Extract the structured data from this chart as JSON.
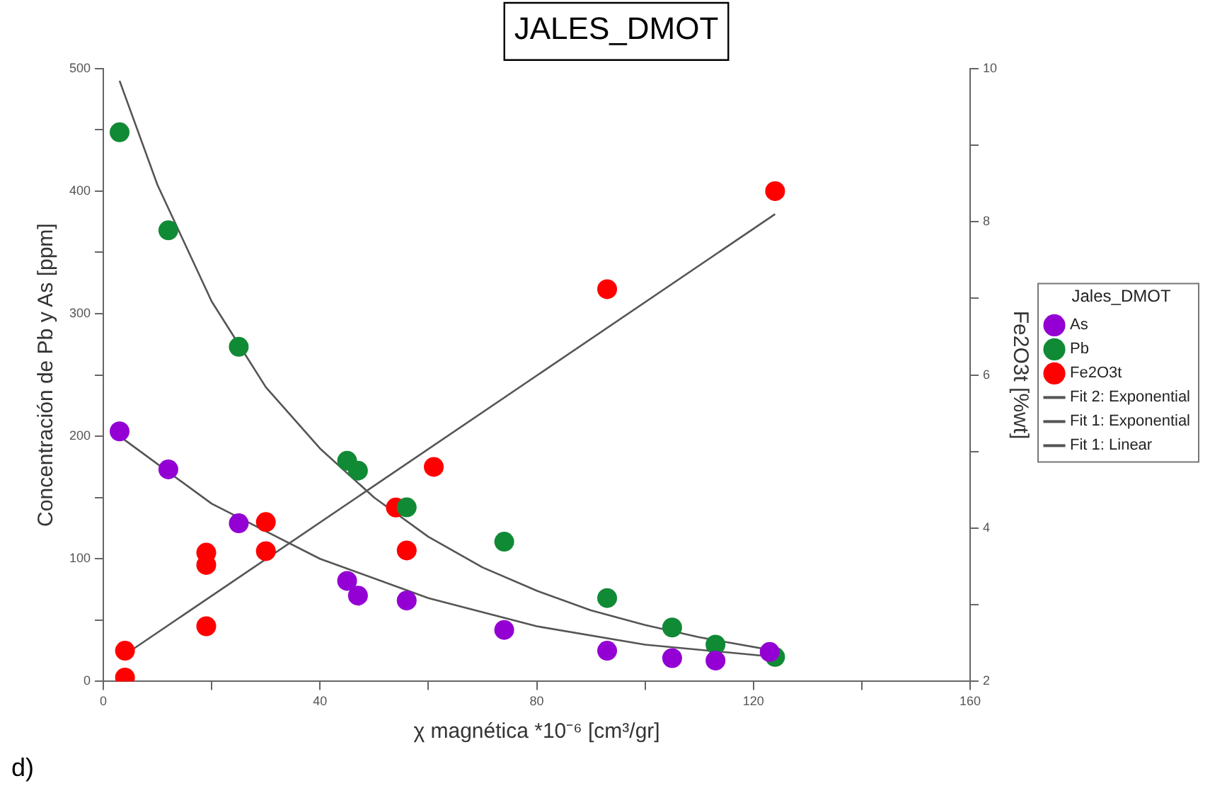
{
  "chart_data": {
    "type": "scatter",
    "title": "JALES_DMOT",
    "xlabel": "χ magnética *10⁻⁶ [cm³/gr]",
    "ylabel": "Concentración de Pb y As [ppm]",
    "y2label": "Fe2O3t [%wt]",
    "legend_title": "Jales_DMOT",
    "legend": "right",
    "grid": false,
    "marker": "circle",
    "xlim": [
      0,
      160
    ],
    "xticks": [
      0,
      {
        "value": 20,
        "label": null
      },
      40,
      {
        "value": 60,
        "label": null
      },
      80,
      {
        "value": 100,
        "label": null
      },
      120,
      {
        "value": 140,
        "label": null
      },
      160
    ],
    "ylim": [
      0,
      500
    ],
    "yticks": [
      0,
      {
        "value": 50,
        "label": null
      },
      100,
      {
        "value": 150,
        "label": null
      },
      200,
      {
        "value": 250,
        "label": null
      },
      300,
      {
        "value": 350,
        "label": null
      },
      400,
      {
        "value": 450,
        "label": null
      },
      500
    ],
    "y2lim": [
      2,
      10
    ],
    "y2ticks": [
      2,
      {
        "value": 3,
        "label": null
      },
      4,
      {
        "value": 5,
        "label": null
      },
      6,
      {
        "value": 7,
        "label": null
      },
      8,
      {
        "value": 9,
        "label": null
      },
      10
    ],
    "annotations": [
      "d)"
    ],
    "series": [
      {
        "name": "As",
        "type": "scatter",
        "color": "#9400d3",
        "x": [
          3,
          12,
          25,
          45,
          47,
          56,
          74,
          93,
          105,
          113,
          123
        ],
        "values": [
          204,
          173,
          129,
          82,
          70,
          66,
          42,
          25,
          19,
          17,
          24
        ]
      },
      {
        "name": "Pb",
        "type": "scatter",
        "color": "#118a35",
        "x": [
          3,
          12,
          25,
          45,
          47,
          56,
          74,
          93,
          105,
          113,
          124
        ],
        "values": [
          448,
          368,
          273,
          180,
          172,
          142,
          114,
          68,
          44,
          30,
          20
        ]
      },
      {
        "name": "Fe2O3t",
        "type": "scatter",
        "axis": "y2",
        "color": "#ff0000",
        "x": [
          4,
          4,
          19,
          19,
          19,
          30,
          30,
          54,
          56,
          61,
          93,
          124
        ],
        "values": [
          2.4,
          2.05,
          2.72,
          3.52,
          3.68,
          4.08,
          3.7,
          4.27,
          3.71,
          4.8,
          7.12,
          8.4
        ]
      },
      {
        "name": "Fit 2: Exponential",
        "type": "line",
        "marker": "none",
        "color": "#555555",
        "x": [
          3,
          20,
          40,
          60,
          80,
          100,
          124
        ],
        "values": [
          200,
          145,
          100,
          68,
          45,
          30,
          20
        ]
      },
      {
        "name": "Fit 1: Exponential",
        "type": "line",
        "marker": "none",
        "color": "#555555",
        "x": [
          3,
          10,
          20,
          30,
          40,
          50,
          60,
          70,
          80,
          90,
          100,
          110,
          124
        ],
        "values": [
          490,
          405,
          310,
          240,
          190,
          150,
          118,
          93,
          74,
          58,
          46,
          36,
          25
        ]
      },
      {
        "name": "Fit 1: Linear",
        "type": "line",
        "marker": "none",
        "axis": "y2",
        "color": "#555555",
        "x": [
          4,
          124
        ],
        "values": [
          2.35,
          8.1
        ]
      }
    ]
  }
}
